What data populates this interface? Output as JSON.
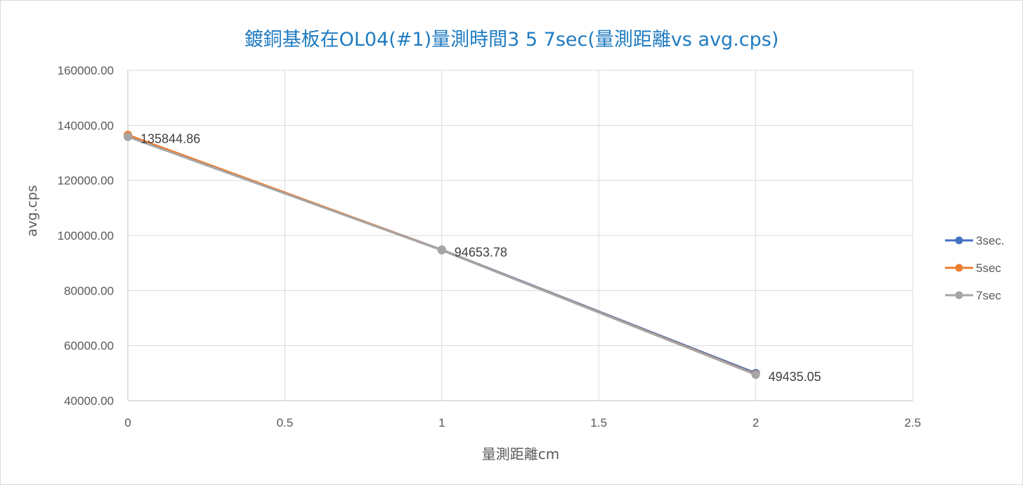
{
  "chart_data": {
    "type": "scatter",
    "title": "鍍銅基板在OL04(#1)量測時間3 5 7sec(量測距離vs avg.cps)",
    "xlabel": "量測距離cm",
    "ylabel": "avg.cps",
    "xlim": [
      0,
      2.5
    ],
    "ylim": [
      40000,
      160000
    ],
    "x_ticks": [
      0,
      0.5,
      1,
      1.5,
      2,
      2.5
    ],
    "x_tick_labels": [
      "0",
      "0.5",
      "1",
      "1.5",
      "2",
      "2.5"
    ],
    "y_ticks": [
      40000,
      60000,
      80000,
      100000,
      120000,
      140000,
      160000
    ],
    "y_tick_labels": [
      "40000.00",
      "60000.00",
      "80000.00",
      "100000.00",
      "120000.00",
      "140000.00",
      "160000.00"
    ],
    "grid": true,
    "legend_position": "right",
    "series": [
      {
        "name": "3sec.",
        "color": "#4472c4",
        "x": [
          0,
          1,
          2
        ],
        "y": [
          136100,
          94800,
          50000
        ]
      },
      {
        "name": "5sec",
        "color": "#ed7d31",
        "x": [
          0,
          1,
          2
        ],
        "y": [
          136500,
          94700,
          49600
        ]
      },
      {
        "name": "7sec",
        "color": "#a5a5a5",
        "x": [
          0,
          1,
          2
        ],
        "y": [
          135844.86,
          94653.78,
          49435.05
        ]
      }
    ],
    "data_labels": [
      {
        "series": "7sec",
        "x": 0,
        "y": 135844.86,
        "text": "135844.86"
      },
      {
        "series": "7sec",
        "x": 1,
        "y": 94653.78,
        "text": "94653.78"
      },
      {
        "series": "7sec",
        "x": 2,
        "y": 49435.05,
        "text": "49435.05"
      }
    ]
  }
}
